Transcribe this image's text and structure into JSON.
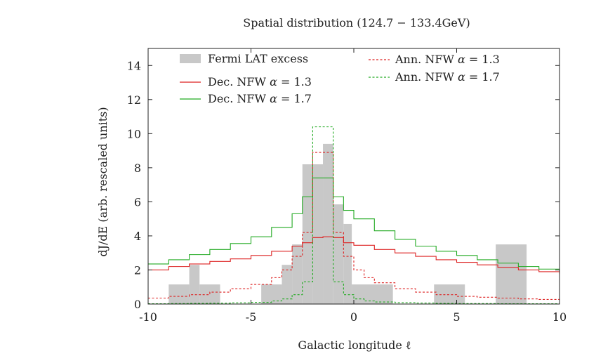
{
  "chart_data": {
    "type": "histogram",
    "title": "Spatial distribution (124.7 − 133.4GeV)",
    "xlabel": "Galactic longitude ℓ",
    "ylabel": "dJ/dE (arb. rescaled units)",
    "xlim": [
      -10,
      10
    ],
    "ylim": [
      0,
      15
    ],
    "xticks": [
      -10,
      -5,
      0,
      5,
      10
    ],
    "xtick_labels": [
      "-10",
      "-5",
      "0",
      "5",
      "10"
    ],
    "yticks": [
      0,
      2,
      4,
      6,
      8,
      10,
      12,
      14
    ],
    "ytick_labels": [
      "0",
      "2",
      "4",
      "6",
      "8",
      "10",
      "12",
      "14"
    ],
    "grid": false,
    "legend_placement": "top",
    "excess": {
      "name": "Fermi LAT excess",
      "color": "#c8c8c8",
      "bins": [
        {
          "x0": -9.0,
          "x1": -8.0,
          "y": 1.15
        },
        {
          "x0": -8.0,
          "x1": -7.5,
          "y": 2.3
        },
        {
          "x0": -7.5,
          "x1": -6.5,
          "y": 1.15
        },
        {
          "x0": -4.5,
          "x1": -3.5,
          "y": 1.15
        },
        {
          "x0": -3.5,
          "x1": -3.0,
          "y": 2.3
        },
        {
          "x0": -3.0,
          "x1": -2.5,
          "y": 3.5
        },
        {
          "x0": -2.5,
          "x1": -2.0,
          "y": 8.2
        },
        {
          "x0": -2.0,
          "x1": -1.5,
          "y": 8.2
        },
        {
          "x0": -1.5,
          "x1": -1.0,
          "y": 9.4
        },
        {
          "x0": -1.0,
          "x1": -0.5,
          "y": 5.85
        },
        {
          "x0": -0.5,
          "x1": -0.1,
          "y": 4.7
        },
        {
          "x0": -0.1,
          "x1": 1.9,
          "y": 1.15
        },
        {
          "x0": 3.9,
          "x1": 5.4,
          "y": 1.15
        },
        {
          "x0": 6.9,
          "x1": 8.4,
          "y": 3.5
        }
      ]
    },
    "series": [
      {
        "name": "Dec. NFW α = 1.3",
        "label_prefix": "Dec. NFW",
        "color": "#dd2222",
        "style": "solid",
        "x": [
          -10,
          -9,
          -8,
          -7,
          -6,
          -5,
          -4,
          -3,
          -2.5,
          -2,
          -1.5,
          -1,
          -0.5,
          0,
          1,
          2,
          3,
          4,
          5,
          6,
          7,
          8,
          9,
          10
        ],
        "y": [
          2.0,
          2.2,
          2.35,
          2.5,
          2.65,
          2.85,
          3.1,
          3.4,
          3.6,
          3.9,
          3.95,
          3.9,
          3.6,
          3.45,
          3.2,
          3.0,
          2.8,
          2.6,
          2.45,
          2.3,
          2.15,
          2.0,
          1.9,
          1.75
        ]
      },
      {
        "name": "Dec. NFW α = 1.7",
        "label_prefix": "Dec. NFW",
        "color": "#22aa22",
        "style": "solid",
        "x": [
          -10,
          -9,
          -8,
          -7,
          -6,
          -5,
          -4,
          -3,
          -2.5,
          -2,
          -1.5,
          -1,
          -0.5,
          0,
          1,
          2,
          3,
          4,
          5,
          6,
          7,
          8,
          9,
          10
        ],
        "y": [
          2.35,
          2.6,
          2.9,
          3.2,
          3.55,
          3.95,
          4.5,
          5.3,
          6.3,
          7.4,
          7.4,
          6.3,
          5.5,
          5.0,
          4.3,
          3.8,
          3.4,
          3.1,
          2.85,
          2.6,
          2.4,
          2.2,
          2.05,
          1.9
        ]
      },
      {
        "name": "Ann. NFW α = 1.3",
        "label_prefix": "Ann. NFW",
        "color": "#dd2222",
        "style": "dashed",
        "x": [
          -10,
          -9,
          -8,
          -7,
          -6,
          -5,
          -4,
          -3.5,
          -3,
          -2.5,
          -2,
          -1.5,
          -1,
          -0.5,
          0,
          0.5,
          1,
          2,
          3,
          4,
          5,
          6,
          7,
          8,
          9,
          10
        ],
        "y": [
          0.35,
          0.45,
          0.55,
          0.7,
          0.9,
          1.15,
          1.55,
          2.0,
          2.8,
          4.2,
          8.9,
          8.9,
          4.2,
          2.8,
          2.0,
          1.55,
          1.25,
          0.9,
          0.7,
          0.55,
          0.45,
          0.4,
          0.35,
          0.3,
          0.27,
          0.25
        ]
      },
      {
        "name": "Ann. NFW α = 1.7",
        "label_prefix": "Ann. NFW",
        "color": "#22aa22",
        "style": "dashed",
        "x": [
          -10,
          -9,
          -8,
          -7,
          -6,
          -5,
          -4,
          -3.5,
          -3,
          -2.5,
          -2,
          -1.5,
          -1,
          -0.5,
          0,
          0.5,
          1,
          2,
          3,
          4,
          5,
          6,
          7,
          8,
          9,
          10
        ],
        "y": [
          0.02,
          0.03,
          0.04,
          0.05,
          0.07,
          0.1,
          0.18,
          0.3,
          0.55,
          1.3,
          10.4,
          10.4,
          1.3,
          0.55,
          0.3,
          0.18,
          0.12,
          0.08,
          0.06,
          0.04,
          0.03,
          0.03,
          0.02,
          0.02,
          0.02,
          0.02
        ]
      }
    ]
  }
}
